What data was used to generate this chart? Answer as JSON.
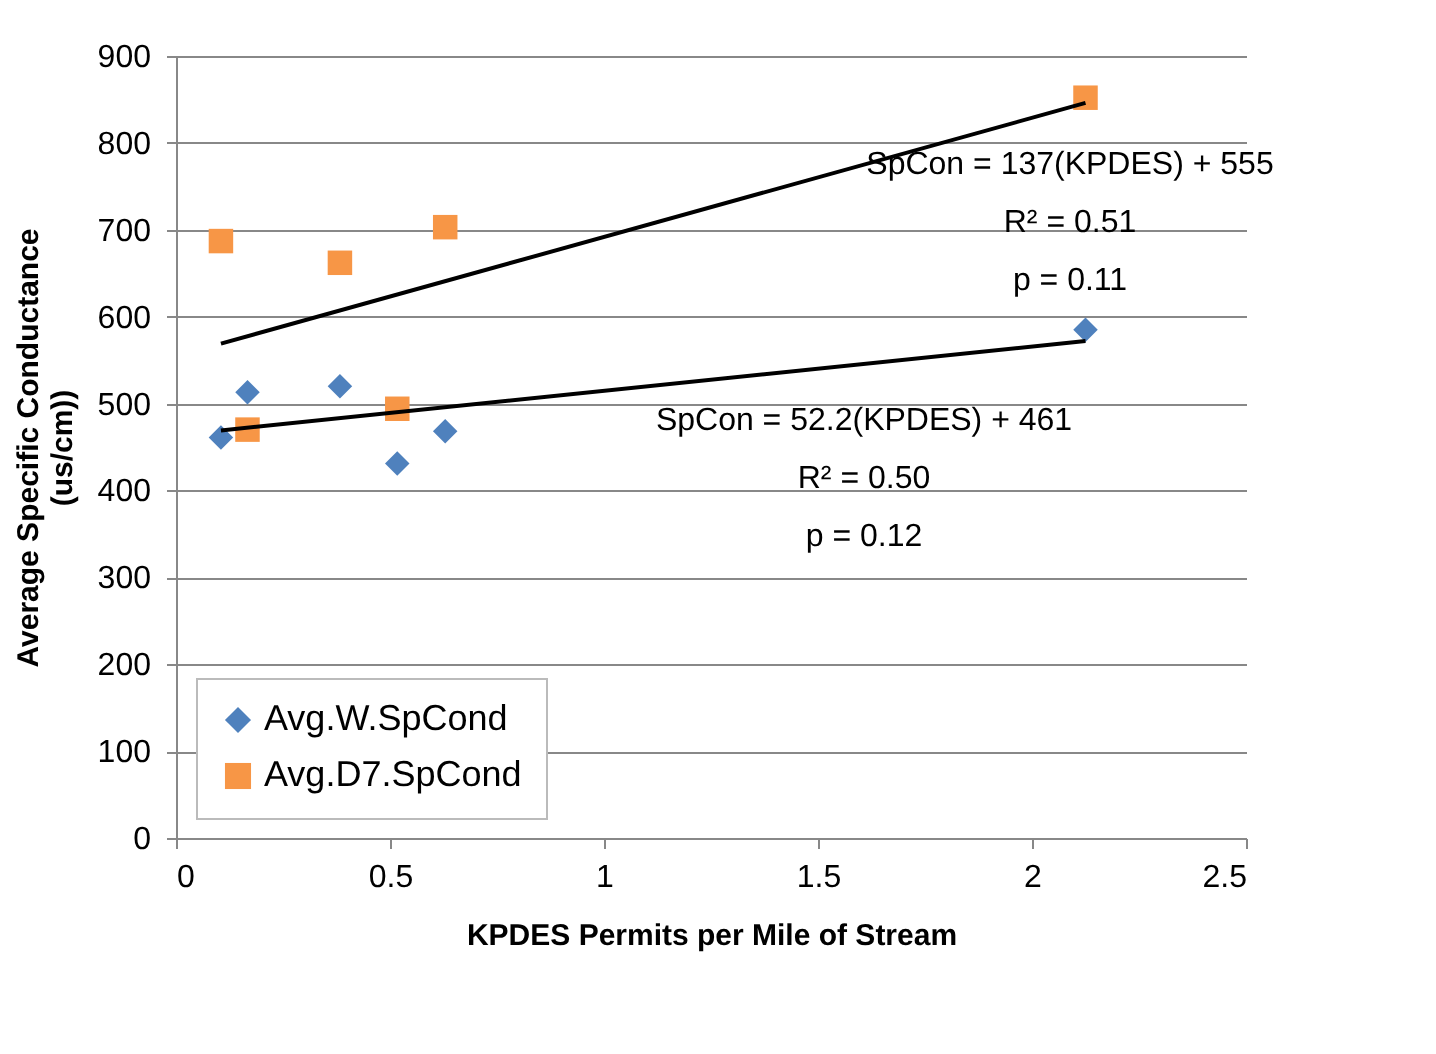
{
  "chart_data": {
    "type": "scatter",
    "xlabel": "KPDES Permits per Mile of Stream",
    "ylabel": "Average Specific Conductance (us/cm))",
    "xlim": [
      0,
      2.5
    ],
    "xticks": [
      0,
      0.5,
      1,
      1.5,
      2,
      2.5
    ],
    "ylim": [
      0,
      900
    ],
    "yticks": [
      0,
      100,
      200,
      300,
      400,
      500,
      600,
      700,
      800,
      900
    ],
    "grid": "y",
    "legend": "bottom left",
    "series": [
      {
        "name": "Avg.W.SpCond",
        "color": "#4f81bd",
        "marker": "diamond",
        "x": [
          0.105,
          0.167,
          0.383,
          0.517,
          0.629,
          2.125
        ],
        "values": [
          461,
          513,
          520,
          431,
          468,
          585
        ]
      },
      {
        "name": "Avg.D7.SpCond",
        "color": "#f79646",
        "marker": "square",
        "x": [
          0.105,
          0.167,
          0.383,
          0.517,
          0.629,
          2.125
        ],
        "values": [
          687,
          470,
          662,
          494,
          703,
          852
        ]
      },
      {
        "type": "line",
        "color": "#000000",
        "x": [
          0.105,
          2.125
        ],
        "values": [
          469,
          572
        ]
      },
      {
        "type": "line",
        "color": "#000000",
        "x": [
          0.105,
          2.125
        ],
        "values": [
          569,
          846
        ]
      }
    ],
    "annotations": [
      "SpCon = 137(KPDES) + 555",
      "R² = 0.51",
      "p = 0.11",
      "SpCon = 52.2(KPDES) + 461",
      "R² = 0.50",
      "p = 0.12"
    ]
  }
}
